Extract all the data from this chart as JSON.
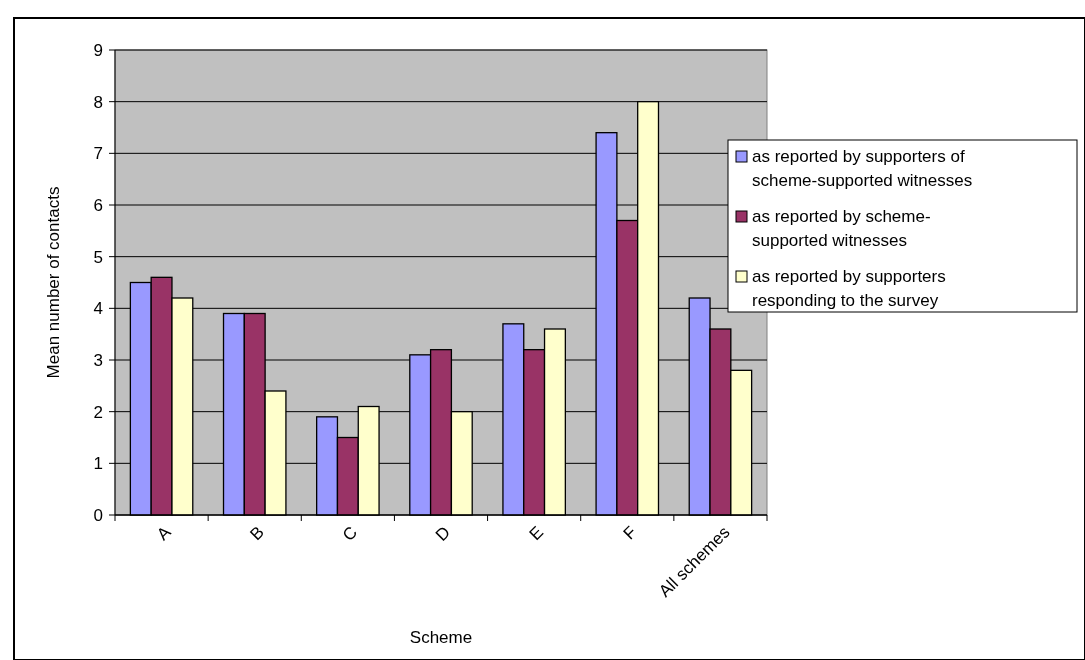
{
  "chart_data": {
    "type": "bar",
    "xlabel": "Scheme",
    "ylabel": "Mean number of contacts",
    "categories": [
      "A",
      "B",
      "C",
      "D",
      "E",
      "F",
      "All schemes"
    ],
    "series": [
      {
        "name": "as reported by supporters of scheme-supported witnesses",
        "color": "#9999ff",
        "values": [
          4.5,
          3.9,
          1.9,
          3.1,
          3.7,
          7.4,
          4.2
        ]
      },
      {
        "name": "as reported by scheme-supported witnesses",
        "color": "#993366",
        "values": [
          4.6,
          3.9,
          1.5,
          3.2,
          3.2,
          5.7,
          3.6
        ]
      },
      {
        "name": "as reported by supporters responding to the survey",
        "color": "#ffffcc",
        "values": [
          4.2,
          2.4,
          2.1,
          2.0,
          3.6,
          8.0,
          2.8
        ]
      }
    ],
    "ylim": [
      0,
      9
    ],
    "yticks": [
      0,
      1,
      2,
      3,
      4,
      5,
      6,
      7,
      8,
      9
    ],
    "grid": "y",
    "legend": "right"
  }
}
